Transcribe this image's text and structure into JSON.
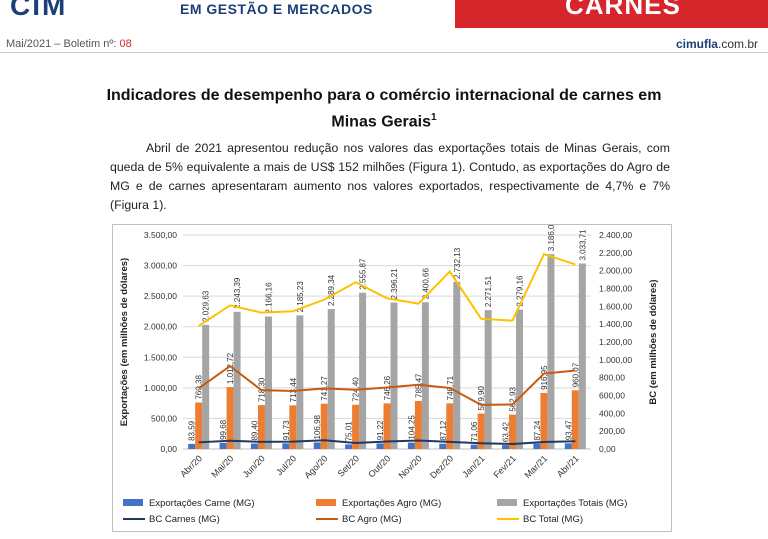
{
  "header": {
    "logo_text": "CIM",
    "tagline": "EM GESTÃO E MERCADOS",
    "section": "CARNES",
    "issue_prefix": "Mai/2021 – Boletim nº: ",
    "issue_number": "08",
    "site_brand": "cimufla",
    "site_suffix": ".com.br"
  },
  "article": {
    "title": "Indicadores de desempenho para o comércio internacional de carnes em Minas Gerais",
    "title_footnote": "1",
    "paragraph": "Abril de 2021 apresentou redução nos valores das exportações totais de Minas Gerais, com queda de 5% equivalente a mais de US$ 152 milhões (Figura 1). Contudo, as exportações do Agro de MG e de carnes apresentaram aumento nos valores exportados, respectivamente de 4,7% e 7% (Figura 1)."
  },
  "colors": {
    "brand_blue": "#1d3f78",
    "brand_red": "#d7262b",
    "carne_bar": "#4472c4",
    "agro_bar": "#ed7d31",
    "total_bar": "#a5a5a5",
    "bc_carnes_line": "#1f3864",
    "bc_agro_line": "#c55a11",
    "bc_total_line": "#ffc000"
  },
  "chart_data": {
    "type": "bar",
    "categories": [
      "Abr/20",
      "Mai/20",
      "Jun/20",
      "Jul/20",
      "Ago/20",
      "Set/20",
      "Out/20",
      "Nov/20",
      "Dez/20",
      "Jan/21",
      "Fev/21",
      "Mar/21",
      "Abr/21"
    ],
    "ylabel": "Exportações (em milhões de dólares)",
    "y2label": "BC (em milhões de dólares)",
    "ylim": [
      0,
      3500
    ],
    "y2lim": [
      0,
      2400
    ],
    "y_ticks": [
      "0,00",
      "500,00",
      "1.000,00",
      "1.500,00",
      "2.000,00",
      "2.500,00",
      "3.000,00",
      "3.500,00"
    ],
    "y2_ticks": [
      "0,00",
      "200,00",
      "400,00",
      "600,00",
      "800,00",
      "1.000,00",
      "1.200,00",
      "1.400,00",
      "1.600,00",
      "1.800,00",
      "2.000,00",
      "2.200,00",
      "2.400,00"
    ],
    "grid": true,
    "legend_position": "bottom",
    "series": [
      {
        "name": "Exportações Carne (MG)",
        "kind": "bar",
        "axis": "left",
        "values": [
          83.59,
          99.68,
          89.4,
          91.73,
          106.98,
          75.01,
          91.22,
          104.25,
          87.12,
          71.06,
          63.42,
          87.24,
          93.47
        ],
        "labels": [
          "83,59",
          "99,68",
          "89,40",
          "91,73",
          "106,98",
          "75,01",
          "91,22",
          "104,25",
          "87,12",
          "71,06",
          "63,42",
          "87,24",
          "93,47"
        ]
      },
      {
        "name": "Exportações Agro (MG)",
        "kind": "bar",
        "axis": "left",
        "values": [
          760.38,
          1012.72,
          718.3,
          713.44,
          741.27,
          724.4,
          746.26,
          785.47,
          746.71,
          579.9,
          562.93,
          916.95,
          960.07
        ],
        "labels": [
          "760,38",
          "1.012,72",
          "718,30",
          "713,44",
          "741,27",
          "724,40",
          "746,26",
          "785,47",
          "746,71",
          "579,90",
          "562,93",
          "916,95",
          "960,07"
        ]
      },
      {
        "name": "Exportações Totais (MG)",
        "kind": "bar",
        "axis": "left",
        "values": [
          2029.63,
          2243.39,
          2166.16,
          2185.23,
          2289.34,
          2555.87,
          2396.21,
          2400.66,
          2732.13,
          2271.51,
          2279.16,
          3186.02,
          3033.71
        ],
        "labels": [
          "2.029,63",
          "2.243,39",
          "2.166,16",
          "2.185,23",
          "2.289,34",
          "2.555,87",
          "2.396,21",
          "2.400,66",
          "2.732,13",
          "2.271,51",
          "2.279,16",
          "3.186,02",
          "3.033,71"
        ]
      },
      {
        "name": "BC Carnes (MG)",
        "kind": "line",
        "axis": "right",
        "values": [
          75,
          92,
          80,
          83,
          98,
          68,
          84,
          96,
          80,
          64,
          56,
          78,
          87
        ]
      },
      {
        "name": "BC Agro (MG)",
        "kind": "line",
        "axis": "right",
        "values": [
          680,
          930,
          660,
          650,
          680,
          665,
          690,
          720,
          685,
          495,
          500,
          845,
          880
        ]
      },
      {
        "name": "BC Total (MG)",
        "kind": "line",
        "axis": "right",
        "values": [
          1380,
          1610,
          1530,
          1545,
          1675,
          1870,
          1690,
          1630,
          1990,
          1460,
          1440,
          2185,
          2070
        ]
      }
    ]
  }
}
